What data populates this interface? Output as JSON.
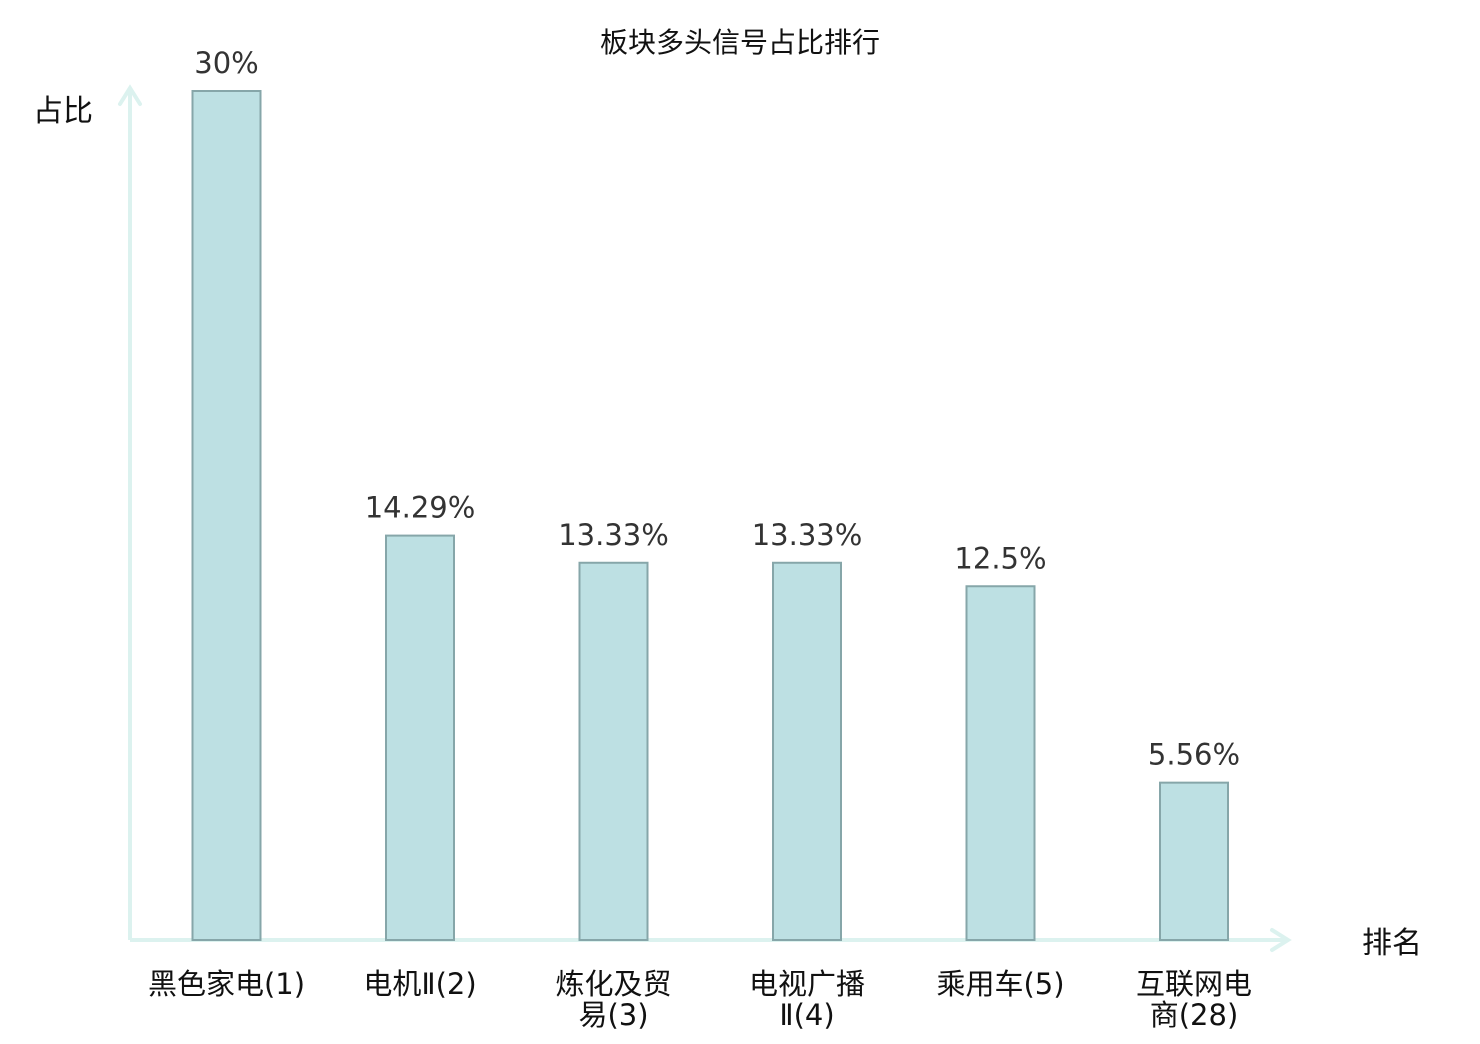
{
  "chart_data": {
    "type": "bar",
    "title": "板块多头信号占比排行",
    "ylabel": "占比",
    "xlabel": "排名",
    "categories": [
      [
        "黑色家电(1)"
      ],
      [
        "电机Ⅱ(2)"
      ],
      [
        "炼化及贸",
        "易(3)"
      ],
      [
        "电视广播",
        "Ⅱ(4)"
      ],
      [
        "乘用车(5)"
      ],
      [
        "互联网电",
        "商(28)"
      ]
    ],
    "values": [
      30,
      14.29,
      13.33,
      13.33,
      12.5,
      5.56
    ],
    "value_labels": [
      "30%",
      "14.29%",
      "13.33%",
      "13.33%",
      "12.5%",
      "5.56%"
    ],
    "highlight_index": 5,
    "ylim": [
      0,
      30
    ],
    "grid": false,
    "legend": "none",
    "colors": {
      "bar_fill": "#bde0e3",
      "bar_stroke": "#86a6a9",
      "axis": "#dcf2ef",
      "highlight_text": "#e8141b",
      "label_text": "#333333"
    }
  }
}
